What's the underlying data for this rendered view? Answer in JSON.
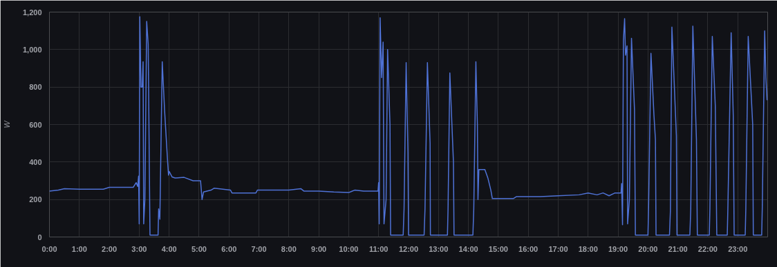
{
  "chart_data": {
    "type": "line",
    "ylabel": "W",
    "xlim": [
      0,
      24
    ],
    "ylim": [
      0,
      1200
    ],
    "xticks": [
      {
        "value": 0,
        "label": "0:00"
      },
      {
        "value": 1,
        "label": "1:00"
      },
      {
        "value": 2,
        "label": "2:00"
      },
      {
        "value": 3,
        "label": "3:00"
      },
      {
        "value": 4,
        "label": "4:00"
      },
      {
        "value": 5,
        "label": "5:00"
      },
      {
        "value": 6,
        "label": "6:00"
      },
      {
        "value": 7,
        "label": "7:00"
      },
      {
        "value": 8,
        "label": "8:00"
      },
      {
        "value": 9,
        "label": "9:00"
      },
      {
        "value": 10,
        "label": "10:00"
      },
      {
        "value": 11,
        "label": "11:00"
      },
      {
        "value": 12,
        "label": "12:00"
      },
      {
        "value": 13,
        "label": "13:00"
      },
      {
        "value": 14,
        "label": "14:00"
      },
      {
        "value": 15,
        "label": "15:00"
      },
      {
        "value": 16,
        "label": "16:00"
      },
      {
        "value": 17,
        "label": "17:00"
      },
      {
        "value": 18,
        "label": "18:00"
      },
      {
        "value": 19,
        "label": "19:00"
      },
      {
        "value": 20,
        "label": "20:00"
      },
      {
        "value": 21,
        "label": "21:00"
      },
      {
        "value": 22,
        "label": "22:00"
      },
      {
        "value": 23,
        "label": "23:00"
      }
    ],
    "yticks": [
      0,
      200,
      400,
      600,
      800,
      {
        "value": 1000,
        "label": "1,000"
      },
      {
        "value": 1200,
        "label": "1,200"
      }
    ],
    "grid": true,
    "marker": "none",
    "line_style": "solid",
    "series": [
      {
        "color": "#4f72d6",
        "x": [
          0,
          0.3,
          0.5,
          1,
          1.8,
          2,
          2.8,
          2.9,
          2.95,
          2.98,
          3.0,
          3.02,
          3.06,
          3.1,
          3.13,
          3.15,
          3.19,
          3.25,
          3.3,
          3.36,
          3.63,
          3.65,
          3.69,
          3.77,
          3.85,
          3.95,
          3.98,
          4.0,
          4.1,
          4.2,
          4.5,
          4.8,
          5.05,
          5.1,
          5.15,
          5.4,
          5.5,
          6.05,
          6.1,
          6.9,
          6.95,
          7.3,
          8.0,
          8.4,
          8.5,
          9.0,
          9.5,
          10.0,
          10.2,
          10.5,
          10.98,
          11.0,
          11.02,
          11.05,
          11.1,
          11.15,
          11.18,
          11.25,
          11.3,
          11.38,
          11.4,
          11.82,
          11.85,
          11.92,
          11.98,
          12.0,
          12.52,
          12.55,
          12.63,
          12.72,
          12.73,
          13.3,
          13.32,
          13.38,
          13.5,
          13.52,
          14.15,
          14.18,
          14.25,
          14.3,
          14.32,
          14.35,
          14.55,
          14.65,
          14.75,
          14.8,
          15.5,
          15.6,
          16.0,
          16.4,
          17.0,
          17.7,
          18.0,
          18.3,
          18.5,
          18.7,
          18.9,
          19.1,
          19.12,
          19.15,
          19.18,
          19.22,
          19.25,
          19.3,
          19.32,
          19.38,
          19.45,
          19.55,
          19.58,
          20.0,
          20.02,
          20.1,
          20.2,
          20.25,
          20.27,
          20.72,
          20.75,
          20.8,
          20.95,
          20.97,
          21.4,
          21.43,
          21.5,
          21.62,
          21.65,
          22.05,
          22.07,
          22.15,
          22.25,
          22.3,
          22.65,
          22.67,
          22.78,
          22.85,
          22.88,
          23.25,
          23.27,
          23.35,
          23.5,
          23.52,
          23.8,
          23.82,
          23.9,
          23.94,
          23.98
        ],
        "values": [
          245,
          250,
          258,
          255,
          255,
          265,
          265,
          290,
          270,
          325,
          70,
          1175,
          800,
          800,
          935,
          70,
          200,
          1150,
          1030,
          10,
          10,
          150,
          95,
          935,
          670,
          400,
          330,
          350,
          320,
          315,
          318,
          300,
          300,
          200,
          240,
          250,
          260,
          250,
          235,
          235,
          250,
          250,
          250,
          258,
          245,
          245,
          240,
          237,
          250,
          245,
          245,
          290,
          70,
          1170,
          850,
          1040,
          70,
          200,
          1000,
          600,
          10,
          10,
          150,
          930,
          450,
          10,
          10,
          150,
          930,
          500,
          10,
          10,
          150,
          875,
          400,
          10,
          10,
          150,
          935,
          600,
          200,
          360,
          360,
          315,
          250,
          205,
          205,
          215,
          215,
          215,
          220,
          225,
          235,
          225,
          235,
          220,
          235,
          235,
          285,
          65,
          1050,
          1165,
          970,
          1020,
          70,
          200,
          1060,
          680,
          10,
          10,
          150,
          980,
          650,
          520,
          10,
          10,
          140,
          1120,
          540,
          10,
          10,
          150,
          1125,
          520,
          10,
          10,
          150,
          1070,
          700,
          10,
          10,
          150,
          1090,
          650,
          10,
          10,
          150,
          1070,
          600,
          10,
          10,
          155,
          1100,
          850,
          730
        ]
      }
    ]
  }
}
